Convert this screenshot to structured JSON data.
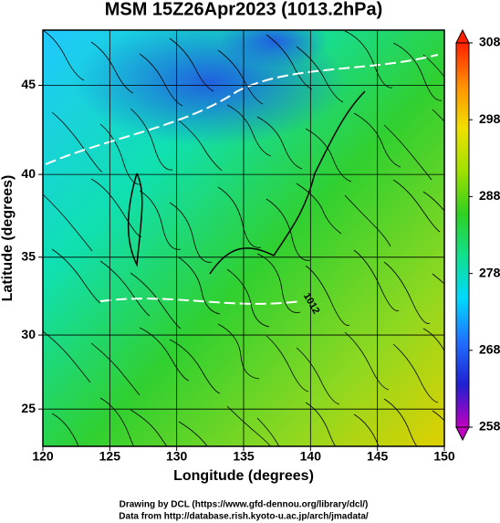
{
  "chart_data": {
    "type": "map",
    "title": "MSM 15Z26Apr2023 (1013.2hPa)",
    "x_label": "Longitude (degrees)",
    "y_label": "Latitude  (degrees)",
    "xlim": [
      120,
      150
    ],
    "xticks": [
      120,
      125,
      130,
      135,
      140,
      145,
      150
    ],
    "ylim": [
      22.4,
      47.9
    ],
    "yticks": [
      25,
      30,
      35,
      40,
      45
    ],
    "yscale": "mercator",
    "grid": true,
    "colorbar": {
      "clim": [
        258,
        308
      ],
      "ticks": [
        258,
        268,
        278,
        288,
        298,
        308
      ],
      "colormap": [
        "#c000c0",
        "#2020d0",
        "#2070ff",
        "#00d8ff",
        "#10e090",
        "#30d020",
        "#a0e000",
        "#f0e000",
        "#ff9000",
        "#ff2000"
      ]
    },
    "annotations": [
      "1012"
    ],
    "credits": [
      "Drawing by DCL (https://www.gfd-dennou.org/library/dcl/)",
      "Data from http://database.rish.kyoto-u.ac.jp/arch/jmadata/"
    ]
  }
}
